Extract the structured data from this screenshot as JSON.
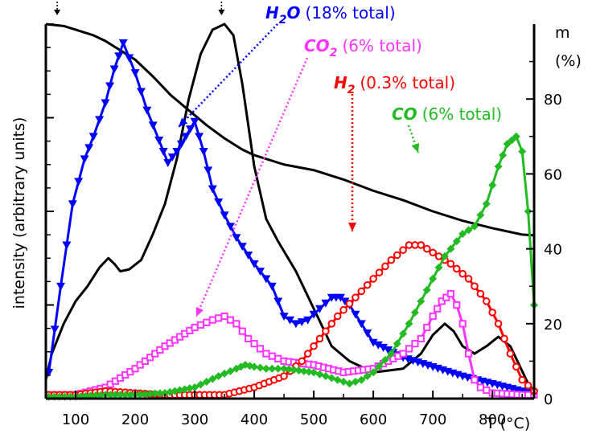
{
  "chart_data": {
    "type": "line",
    "xlabel": "T (°C)",
    "ylabel_left": "intensity (arbitrary units)",
    "ylabel_right": [
      "m",
      "(%)"
    ],
    "xlim": [
      50,
      870
    ],
    "ylim_right": [
      0,
      100
    ],
    "x_ticks": [
      "100",
      "200",
      "300",
      "400",
      "500",
      "600",
      "700",
      "800"
    ],
    "y_right_ticks": [
      "0",
      "20",
      "40",
      "60",
      "80"
    ],
    "grid": false,
    "colors": {
      "mass": "#000000",
      "unlabeled": "#000000",
      "H2O": "#0000ff",
      "CO2": "#ff33ff",
      "H2": "#ff0000",
      "CO": "#22bb22"
    },
    "series": [
      {
        "key": "mass",
        "axis": "right",
        "marker": "none",
        "x": [
          50,
          80,
          100,
          130,
          150,
          180,
          200,
          230,
          260,
          290,
          320,
          350,
          380,
          400,
          450,
          500,
          550,
          600,
          650,
          700,
          750,
          800,
          850,
          870
        ],
        "y": [
          100,
          99.5,
          98.5,
          97,
          95.5,
          92.5,
          90.5,
          86,
          81,
          77,
          73,
          69.5,
          66.5,
          65,
          62.5,
          61,
          58.5,
          55.5,
          53,
          50,
          47.5,
          45.5,
          43.8,
          43.6
        ]
      },
      {
        "key": "unlabeled",
        "axis": "left",
        "marker": "none",
        "x": [
          50,
          60,
          80,
          100,
          120,
          140,
          155,
          165,
          175,
          190,
          210,
          230,
          250,
          270,
          290,
          310,
          330,
          350,
          365,
          380,
          400,
          420,
          440,
          470,
          500,
          530,
          560,
          600,
          650,
          680,
          700,
          720,
          735,
          750,
          770,
          790,
          810,
          830,
          845,
          860,
          870
        ],
        "y": [
          0.05,
          0.12,
          0.2,
          0.26,
          0.3,
          0.35,
          0.375,
          0.36,
          0.34,
          0.345,
          0.37,
          0.44,
          0.52,
          0.64,
          0.8,
          0.92,
          0.985,
          1.0,
          0.97,
          0.84,
          0.62,
          0.48,
          0.42,
          0.34,
          0.24,
          0.14,
          0.1,
          0.07,
          0.08,
          0.12,
          0.17,
          0.2,
          0.18,
          0.14,
          0.12,
          0.14,
          0.165,
          0.14,
          0.09,
          0.04,
          0.02
        ]
      },
      {
        "key": "H2O",
        "axis": "left",
        "marker": "triangle-down",
        "name": "H",
        "name_sub": "2",
        "name_tail": "O",
        "note": "(18% total)",
        "x": [
          55,
          75,
          95,
          115,
          130,
          150,
          165,
          180,
          200,
          220,
          240,
          255,
          270,
          285,
          300,
          315,
          330,
          350,
          370,
          400,
          430,
          450,
          470,
          490,
          510,
          530,
          545,
          560,
          580,
          600,
          650,
          700,
          750,
          800,
          850,
          870
        ],
        "y": [
          0.07,
          0.3,
          0.52,
          0.64,
          0.7,
          0.79,
          0.88,
          0.95,
          0.87,
          0.77,
          0.69,
          0.63,
          0.66,
          0.7,
          0.74,
          0.66,
          0.56,
          0.49,
          0.43,
          0.36,
          0.3,
          0.22,
          0.2,
          0.21,
          0.24,
          0.27,
          0.27,
          0.25,
          0.2,
          0.15,
          0.11,
          0.085,
          0.06,
          0.04,
          0.02,
          0.015
        ]
      },
      {
        "key": "CO2",
        "axis": "left",
        "marker": "square",
        "name": "CO",
        "name_sub": "2",
        "note": "(6% total)",
        "x": [
          55,
          100,
          150,
          200,
          250,
          300,
          330,
          350,
          370,
          390,
          420,
          450,
          500,
          550,
          600,
          650,
          680,
          700,
          715,
          730,
          740,
          750,
          760,
          770,
          780,
          800,
          850,
          870
        ],
        "y": [
          0.01,
          0.01,
          0.03,
          0.08,
          0.14,
          0.19,
          0.21,
          0.22,
          0.2,
          0.16,
          0.12,
          0.1,
          0.09,
          0.07,
          0.08,
          0.12,
          0.16,
          0.22,
          0.26,
          0.28,
          0.25,
          0.2,
          0.12,
          0.05,
          0.03,
          0.015,
          0.01,
          0.01
        ]
      },
      {
        "key": "H2",
        "axis": "left",
        "marker": "circle",
        "name": "H",
        "name_sub": "2",
        "note": "(0.3% total)",
        "x": [
          55,
          100,
          150,
          200,
          250,
          300,
          350,
          400,
          450,
          480,
          510,
          540,
          570,
          600,
          630,
          660,
          680,
          700,
          730,
          760,
          790,
          810,
          830,
          850,
          870
        ],
        "y": [
          0.01,
          0.01,
          0.02,
          0.015,
          0.01,
          0.01,
          0.01,
          0.03,
          0.06,
          0.1,
          0.16,
          0.22,
          0.27,
          0.32,
          0.37,
          0.41,
          0.41,
          0.39,
          0.36,
          0.32,
          0.26,
          0.2,
          0.12,
          0.05,
          0.02
        ]
      },
      {
        "key": "CO",
        "axis": "left",
        "marker": "diamond",
        "name": "CO",
        "note": "(6% total)",
        "x": [
          55,
          100,
          150,
          200,
          250,
          300,
          340,
          370,
          385,
          400,
          420,
          450,
          500,
          540,
          560,
          580,
          600,
          630,
          660,
          690,
          720,
          750,
          770,
          790,
          810,
          825,
          840,
          850,
          860,
          870
        ],
        "y": [
          0.005,
          0.005,
          0.01,
          0.01,
          0.015,
          0.03,
          0.06,
          0.08,
          0.09,
          0.085,
          0.08,
          0.08,
          0.07,
          0.05,
          0.04,
          0.05,
          0.07,
          0.12,
          0.2,
          0.29,
          0.38,
          0.44,
          0.46,
          0.52,
          0.62,
          0.68,
          0.7,
          0.66,
          0.5,
          0.25
        ]
      }
    ]
  }
}
